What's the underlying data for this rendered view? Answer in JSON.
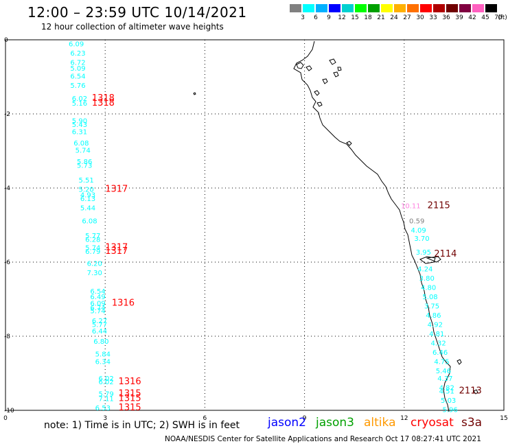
{
  "header": {
    "title": "12:00 – 23:59 UTC 10/14/2021",
    "subtitle": "12 hour collection of altimeter wave heights"
  },
  "colorbar": {
    "unit_label": "(ft)",
    "colors": [
      "#808080",
      "#00ffff",
      "#00b0ff",
      "#0000ff",
      "#00d0d0",
      "#00ff00",
      "#00a000",
      "#ffff00",
      "#ffb000",
      "#ff7000",
      "#ff0000",
      "#b00000",
      "#700000",
      "#800040",
      "#ff60c0",
      "#000000"
    ],
    "ticks": [
      "3",
      "6",
      "9",
      "12",
      "15",
      "18",
      "21",
      "24",
      "27",
      "30",
      "33",
      "36",
      "39",
      "42",
      "45",
      "70"
    ]
  },
  "axes": {
    "x_ticks": [
      "0",
      "3",
      "6",
      "9",
      "12",
      "15"
    ],
    "y_ticks": [
      "0",
      "-2",
      "-4",
      "-6",
      "-8",
      "-10"
    ]
  },
  "observations": {
    "wave_heights": [
      {
        "v": "6.09",
        "x": 1.9,
        "y": 0.18,
        "c": "#00ffff"
      },
      {
        "v": "6.23",
        "x": 1.95,
        "y": 0.43,
        "c": "#00ffff"
      },
      {
        "v": "6.72",
        "x": 1.95,
        "y": 0.68,
        "c": "#00ffff"
      },
      {
        "v": "5.09",
        "x": 1.95,
        "y": 0.83,
        "c": "#00ffff"
      },
      {
        "v": "6.54",
        "x": 1.95,
        "y": 1.05,
        "c": "#00ffff"
      },
      {
        "v": "5.76",
        "x": 1.95,
        "y": 1.3,
        "c": "#00ffff"
      },
      {
        "v": "6.02",
        "x": 2.0,
        "y": 1.65,
        "c": "#00ffff"
      },
      {
        "v": "5.16",
        "x": 2.0,
        "y": 1.78,
        "c": "#00ffff"
      },
      {
        "v": "5.90",
        "x": 2.0,
        "y": 2.25,
        "c": "#00ffff"
      },
      {
        "v": "5.43",
        "x": 2.0,
        "y": 2.35,
        "c": "#00ffff"
      },
      {
        "v": "6.31",
        "x": 2.0,
        "y": 2.55,
        "c": "#00ffff"
      },
      {
        "v": "6.08",
        "x": 2.05,
        "y": 2.85,
        "c": "#00ffff"
      },
      {
        "v": "5.74",
        "x": 2.1,
        "y": 3.05,
        "c": "#00ffff"
      },
      {
        "v": "5.86",
        "x": 2.15,
        "y": 3.35,
        "c": "#00ffff"
      },
      {
        "v": "5.73",
        "x": 2.15,
        "y": 3.45,
        "c": "#00ffff"
      },
      {
        "v": "5.51",
        "x": 2.2,
        "y": 3.85,
        "c": "#00ffff"
      },
      {
        "v": "5.20",
        "x": 2.2,
        "y": 4.1,
        "c": "#00ffff"
      },
      {
        "v": "4.93",
        "x": 2.25,
        "y": 4.25,
        "c": "#00ffff"
      },
      {
        "v": "6.13",
        "x": 2.25,
        "y": 4.35,
        "c": "#00ffff"
      },
      {
        "v": "5.44",
        "x": 2.25,
        "y": 4.6,
        "c": "#00ffff"
      },
      {
        "v": "6.08",
        "x": 2.3,
        "y": 4.95,
        "c": "#00ffff"
      },
      {
        "v": "5.77",
        "x": 2.4,
        "y": 5.35,
        "c": "#00ffff"
      },
      {
        "v": "6.28",
        "x": 2.4,
        "y": 5.45,
        "c": "#00ffff"
      },
      {
        "v": "5.74",
        "x": 2.4,
        "y": 5.68,
        "c": "#00ffff"
      },
      {
        "v": "6.79",
        "x": 2.4,
        "y": 5.78,
        "c": "#00ffff"
      },
      {
        "v": "6.20",
        "x": 2.45,
        "y": 6.1,
        "c": "#00ffff"
      },
      {
        "v": "7.30",
        "x": 2.45,
        "y": 6.35,
        "c": "#00ffff"
      },
      {
        "v": "6.54",
        "x": 2.55,
        "y": 6.85,
        "c": "#00ffff"
      },
      {
        "v": "6.49",
        "x": 2.55,
        "y": 7.0,
        "c": "#00ffff"
      },
      {
        "v": "6.09",
        "x": 2.55,
        "y": 7.18,
        "c": "#00ffff"
      },
      {
        "v": "6.74",
        "x": 2.55,
        "y": 7.3,
        "c": "#00ffff"
      },
      {
        "v": "5.74",
        "x": 2.55,
        "y": 7.38,
        "c": "#00ffff"
      },
      {
        "v": "6.27",
        "x": 2.6,
        "y": 7.65,
        "c": "#00ffff"
      },
      {
        "v": "5.77",
        "x": 2.6,
        "y": 7.75,
        "c": "#00ffff"
      },
      {
        "v": "6.44",
        "x": 2.6,
        "y": 7.93,
        "c": "#00ffff"
      },
      {
        "v": "6.80",
        "x": 2.65,
        "y": 8.2,
        "c": "#00ffff"
      },
      {
        "v": "5.84",
        "x": 2.7,
        "y": 8.55,
        "c": "#00ffff"
      },
      {
        "v": "6.34",
        "x": 2.7,
        "y": 8.75,
        "c": "#00ffff"
      },
      {
        "v": "6.02",
        "x": 2.8,
        "y": 9.2,
        "c": "#00ffff"
      },
      {
        "v": "6.02",
        "x": 2.8,
        "y": 9.3,
        "c": "#00ffff"
      },
      {
        "v": "5.79",
        "x": 2.8,
        "y": 9.62,
        "c": "#00ffff"
      },
      {
        "v": "7.11",
        "x": 2.8,
        "y": 9.75,
        "c": "#00ffff"
      },
      {
        "v": "6.53",
        "x": 2.7,
        "y": 10.0,
        "c": "#00ffff"
      },
      {
        "v": "10.11",
        "x": 11.9,
        "y": 4.55,
        "c": "#ff80e0"
      },
      {
        "v": "0.59",
        "x": 12.15,
        "y": 4.95,
        "c": "#808080"
      },
      {
        "v": "4.09",
        "x": 12.2,
        "y": 5.2,
        "c": "#00ffff"
      },
      {
        "v": "3.70",
        "x": 12.3,
        "y": 5.43,
        "c": "#00ffff"
      },
      {
        "v": "3.95",
        "x": 12.35,
        "y": 5.8,
        "c": "#00ffff"
      },
      {
        "v": "4.24",
        "x": 12.4,
        "y": 6.25,
        "c": "#00ffff"
      },
      {
        "v": "3.80",
        "x": 12.45,
        "y": 6.5,
        "c": "#00ffff"
      },
      {
        "v": "4.80",
        "x": 12.5,
        "y": 6.75,
        "c": "#00ffff"
      },
      {
        "v": "5.08",
        "x": 12.55,
        "y": 7.0,
        "c": "#00ffff"
      },
      {
        "v": "3.75",
        "x": 12.6,
        "y": 7.25,
        "c": "#00ffff"
      },
      {
        "v": "4.86",
        "x": 12.65,
        "y": 7.5,
        "c": "#00ffff"
      },
      {
        "v": "4.92",
        "x": 12.7,
        "y": 7.75,
        "c": "#00ffff"
      },
      {
        "v": "4.81",
        "x": 12.75,
        "y": 8.0,
        "c": "#00ffff"
      },
      {
        "v": "4.32",
        "x": 12.8,
        "y": 8.25,
        "c": "#00ffff"
      },
      {
        "v": "6.46",
        "x": 12.85,
        "y": 8.5,
        "c": "#00ffff"
      },
      {
        "v": "4.75",
        "x": 12.9,
        "y": 8.75,
        "c": "#00ffff"
      },
      {
        "v": "5.46",
        "x": 12.95,
        "y": 9.0,
        "c": "#00ffff"
      },
      {
        "v": "4.37",
        "x": 13.0,
        "y": 9.2,
        "c": "#00ffff"
      },
      {
        "v": "4.82",
        "x": 13.05,
        "y": 9.45,
        "c": "#00ffff"
      },
      {
        "v": "4.51",
        "x": 13.05,
        "y": 9.55,
        "c": "#00ffff"
      },
      {
        "v": "5.03",
        "x": 13.1,
        "y": 9.8,
        "c": "#00ffff"
      },
      {
        "v": "5.96",
        "x": 13.15,
        "y": 10.05,
        "c": "#00ffff"
      }
    ],
    "time_labels": [
      {
        "v": "1318",
        "x": 2.6,
        "y": 1.65,
        "c": "#ff0000"
      },
      {
        "v": "1318",
        "x": 2.6,
        "y": 1.78,
        "c": "#ff0000"
      },
      {
        "v": "1317",
        "x": 3.0,
        "y": 4.1,
        "c": "#ff0000"
      },
      {
        "v": "1317",
        "x": 3.0,
        "y": 5.68,
        "c": "#ff0000"
      },
      {
        "v": "1317",
        "x": 3.0,
        "y": 5.78,
        "c": "#ff0000"
      },
      {
        "v": "1316",
        "x": 3.2,
        "y": 7.18,
        "c": "#ff0000"
      },
      {
        "v": "1316",
        "x": 3.4,
        "y": 9.3,
        "c": "#ff0000"
      },
      {
        "v": "1315",
        "x": 3.4,
        "y": 9.62,
        "c": "#ff0000"
      },
      {
        "v": "1315",
        "x": 3.4,
        "y": 9.75,
        "c": "#ff0000"
      },
      {
        "v": "1315",
        "x": 3.4,
        "y": 10.0,
        "c": "#ff0000"
      },
      {
        "v": "2115",
        "x": 12.7,
        "y": 4.55,
        "c": "#700000"
      },
      {
        "v": "2114",
        "x": 12.9,
        "y": 5.85,
        "c": "#700000"
      },
      {
        "v": "2113",
        "x": 13.65,
        "y": 9.55,
        "c": "#700000"
      }
    ]
  },
  "footer": {
    "note": "note:  1) Time is in UTC; 2) SWH is in feet",
    "credit": "NOAA/NESDIS Center for Satellite Applications and Research    Oct 17 08:27:41 UTC 2021",
    "satellites": [
      {
        "name": "jason2",
        "color": "#0000ff"
      },
      {
        "name": "jason3",
        "color": "#00a000"
      },
      {
        "name": "altika",
        "color": "#ff9900"
      },
      {
        "name": "cryosat",
        "color": "#ff0000"
      },
      {
        "name": "s3a",
        "color": "#700000"
      }
    ]
  }
}
